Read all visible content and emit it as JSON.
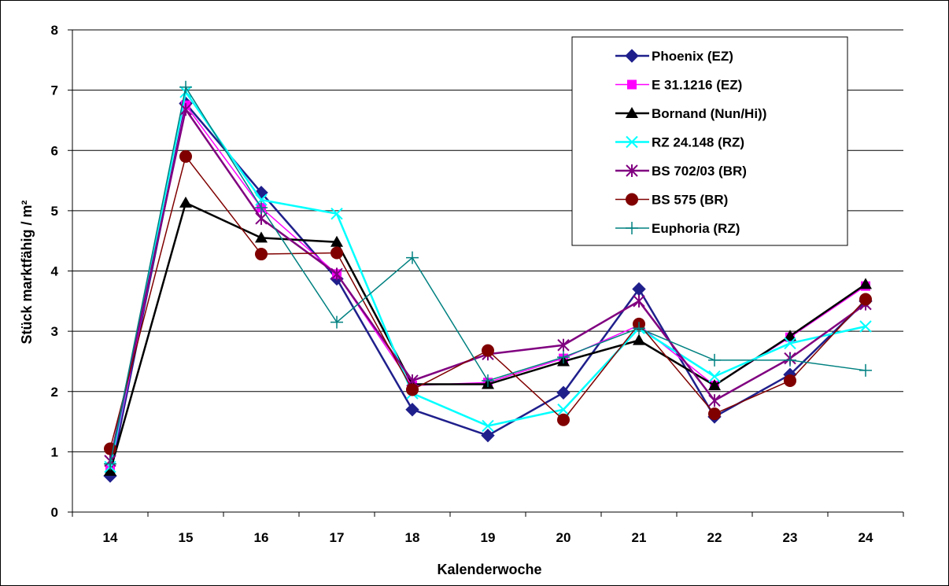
{
  "chart_data": {
    "type": "line",
    "title": "",
    "xlabel": "Kalenderwoche",
    "ylabel": "Stück marktfähig / m²",
    "ylim": [
      0,
      8
    ],
    "yticks": [
      "0",
      "1",
      "2",
      "3",
      "4",
      "5",
      "6",
      "7",
      "8"
    ],
    "categories": [
      "14",
      "15",
      "16",
      "17",
      "18",
      "19",
      "20",
      "21",
      "22",
      "23",
      "24"
    ],
    "grid": "horizontal",
    "legend_position": "top-right",
    "series": [
      {
        "name": "Phoenix (EZ)",
        "color": "#1f1f8c",
        "marker": "diamond",
        "values": [
          0.6,
          6.78,
          5.3,
          3.87,
          1.7,
          1.27,
          1.98,
          3.7,
          1.58,
          2.28,
          3.5
        ]
      },
      {
        "name": "E 31.1216 (EZ)",
        "color": "#ff00ff",
        "marker": "square",
        "values": [
          0.7,
          6.75,
          5.05,
          3.95,
          2.1,
          2.15,
          2.55,
          3.1,
          2.1,
          2.9,
          3.75
        ]
      },
      {
        "name": "Bornand (Nun/Hi))",
        "color": "#000000",
        "marker": "triangle",
        "values": [
          0.68,
          5.13,
          4.55,
          4.48,
          2.12,
          2.12,
          2.5,
          2.85,
          2.1,
          2.92,
          3.78
        ]
      },
      {
        "name": "RZ 24.148 (RZ)",
        "color": "#00ffff",
        "marker": "x",
        "values": [
          0.75,
          6.97,
          5.18,
          4.95,
          1.97,
          1.43,
          1.7,
          3.05,
          2.25,
          2.8,
          3.08
        ]
      },
      {
        "name": "BS 702/03 (BR)",
        "color": "#800080",
        "marker": "star",
        "values": [
          0.85,
          6.68,
          4.87,
          3.95,
          2.18,
          2.62,
          2.77,
          3.5,
          1.85,
          2.55,
          3.45
        ]
      },
      {
        "name": "BS 575 (BR)",
        "color": "#800000",
        "marker": "circle",
        "values": [
          1.05,
          5.9,
          4.28,
          4.3,
          2.03,
          2.68,
          1.53,
          3.12,
          1.63,
          2.18,
          3.53
        ]
      },
      {
        "name": "Euphoria (RZ)",
        "color": "#008080",
        "marker": "plus",
        "values": [
          0.8,
          7.05,
          5.05,
          3.15,
          4.22,
          2.18,
          2.57,
          3.05,
          2.52,
          2.52,
          2.35
        ]
      }
    ]
  }
}
